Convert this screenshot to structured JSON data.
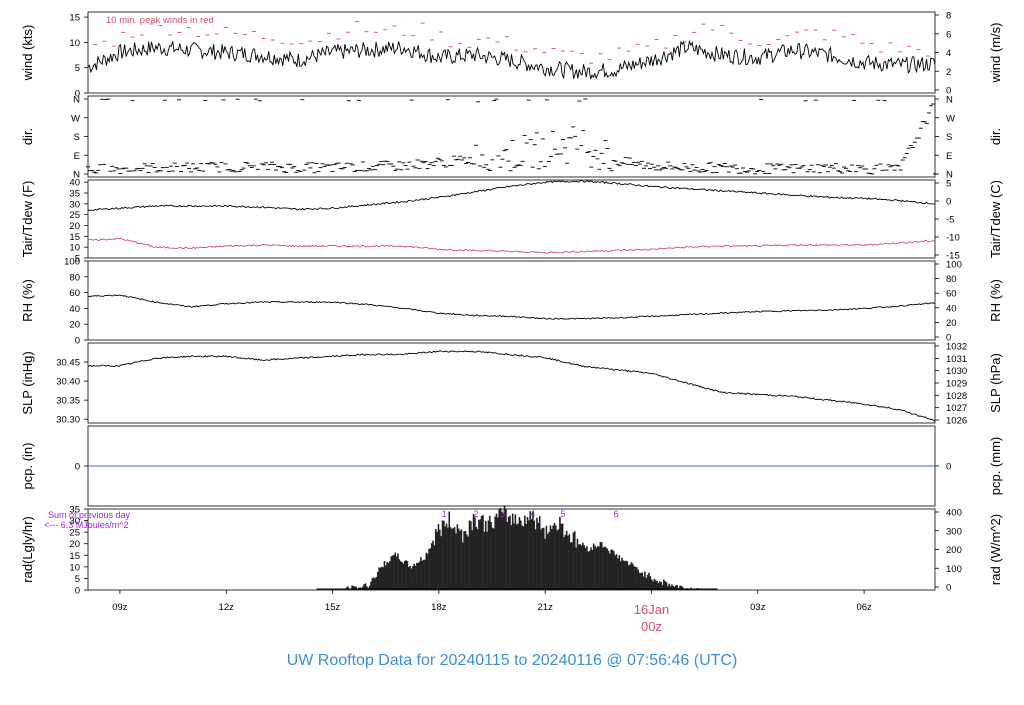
{
  "title": "UW Rooftop Data for 20240115  to  20240116 @ 07:56:46  (UTC)",
  "colors": {
    "title": "#3a8fd6",
    "accent": "#d0506a",
    "precip": "#3b6fd4",
    "annot": "#a020f0",
    "line": "#000000"
  },
  "chart_data": [
    {
      "type": "line",
      "id": "wind",
      "ylabel_left": "wind (kts)",
      "ylabel_right": "wind (m/s)",
      "ylim": [
        0,
        16
      ],
      "yticks_left": [
        "0",
        "5",
        "10",
        "15"
      ],
      "yticks_right": [
        "0",
        "2",
        "4",
        "6",
        "8"
      ],
      "annotation": "10 min. peak winds in red",
      "series": [
        {
          "color": "#000000",
          "x": [
            8,
            9,
            10,
            11,
            12,
            13,
            14,
            15,
            16,
            17,
            18,
            19,
            20,
            21,
            22,
            23,
            24,
            25,
            26,
            27,
            28,
            29,
            30,
            31,
            32
          ],
          "values": [
            4.8,
            8.0,
            9.0,
            8.5,
            8.0,
            7.5,
            6.5,
            8.0,
            8.5,
            9.0,
            7.0,
            7.5,
            6.5,
            5.0,
            4.2,
            4.6,
            6.5,
            9.0,
            7.5,
            7.0,
            8.5,
            7.5,
            6.0,
            5.5,
            5.8
          ]
        }
      ],
      "peaks": {
        "color": "#d0506a",
        "x": [
          8.5,
          9.5,
          10.5,
          11.5,
          12.5,
          13.5,
          14.5,
          15.5,
          16.5,
          17.5,
          18.5,
          19.5,
          20.5,
          21.5,
          22.5,
          23.5,
          24.5,
          25.5,
          26.5,
          27.5,
          28.5,
          29.5,
          30.5,
          31.5
        ],
        "values": [
          9.5,
          12.5,
          13.0,
          12.0,
          11.5,
          11.0,
          10.5,
          13.0,
          12.0,
          12.5,
          10.0,
          10.5,
          9.0,
          7.5,
          7.0,
          8.0,
          10.0,
          13.5,
          11.0,
          10.0,
          12.0,
          11.0,
          9.0,
          8.5
        ]
      }
    },
    {
      "type": "scatter",
      "id": "dir",
      "ylabel_left": "dir.",
      "ylabel_right": "dir.",
      "ylim": [
        0,
        360
      ],
      "yticks_left": [
        "N",
        "E",
        "S",
        "W",
        "N"
      ],
      "yticks_right": [
        "N",
        "E",
        "S",
        "W",
        "N"
      ],
      "series": [
        {
          "color": "#000000",
          "x": [
            8,
            9,
            10,
            11,
            12,
            13,
            14,
            15,
            16,
            17,
            18,
            19,
            20,
            21,
            22,
            23,
            24,
            25,
            26,
            27,
            28,
            29,
            30,
            31,
            32
          ],
          "values": [
            20,
            25,
            30,
            30,
            35,
            35,
            30,
            30,
            35,
            40,
            55,
            70,
            90,
            120,
            150,
            60,
            40,
            30,
            30,
            25,
            25,
            30,
            25,
            20,
            340
          ]
        }
      ]
    },
    {
      "type": "line",
      "id": "temp",
      "ylabel_left": "Tair/Tdew (F)",
      "ylabel_right": "Tair/Tdew (C)",
      "ylim": [
        5,
        41
      ],
      "yticks_left": [
        "5",
        "10",
        "15",
        "20",
        "25",
        "30",
        "35",
        "40"
      ],
      "yticks_right": [
        "-15",
        "-10",
        "-5",
        "0",
        "5"
      ],
      "series": [
        {
          "color": "#000000",
          "x": [
            8,
            9,
            10,
            11,
            12,
            13,
            14,
            15,
            16,
            17,
            18,
            19,
            20,
            21,
            22,
            23,
            24,
            25,
            26,
            27,
            28,
            29,
            30,
            31,
            32
          ],
          "values": [
            27,
            28,
            29,
            29,
            29,
            28.5,
            27.5,
            28,
            29.5,
            31,
            33,
            35.5,
            38,
            40,
            40.5,
            39.5,
            38,
            37,
            36,
            35,
            34,
            33,
            32.5,
            31.5,
            30
          ]
        },
        {
          "color": "#d0506a",
          "x": [
            8,
            9,
            10,
            11,
            12,
            13,
            14,
            15,
            16,
            17,
            18,
            19,
            20,
            21,
            22,
            23,
            24,
            25,
            26,
            27,
            28,
            29,
            30,
            31,
            32
          ],
          "values": [
            13,
            14,
            10,
            9.5,
            10.5,
            11,
            10.5,
            10.5,
            10.5,
            10.5,
            9,
            8.5,
            8,
            7.5,
            8,
            8.5,
            9,
            10,
            10.5,
            10.5,
            11,
            11,
            11,
            12,
            13
          ]
        }
      ]
    },
    {
      "type": "line",
      "id": "rh",
      "ylabel_left": "RH (%)",
      "ylabel_right": "RH (%)",
      "ylim": [
        0,
        100
      ],
      "yticks_left": [
        "0",
        "20",
        "40",
        "60",
        "80",
        "100"
      ],
      "yticks_right": [
        "0",
        "20",
        "40",
        "60",
        "80",
        "100"
      ],
      "series": [
        {
          "color": "#000000",
          "x": [
            8,
            9,
            10,
            11,
            12,
            13,
            14,
            15,
            16,
            17,
            18,
            19,
            20,
            21,
            22,
            23,
            24,
            25,
            26,
            27,
            28,
            29,
            30,
            31,
            32
          ],
          "values": [
            55,
            57,
            48,
            42,
            46,
            48,
            48,
            48,
            45,
            40,
            34,
            31,
            30,
            27,
            27,
            28,
            30,
            32,
            34,
            36,
            37,
            38,
            40,
            43,
            47
          ]
        }
      ]
    },
    {
      "type": "line",
      "id": "slp",
      "ylabel_left": "SLP (inHg)",
      "ylabel_right": "SLP (hPa)",
      "ylim": [
        30.29,
        30.5
      ],
      "yticks_left": [
        "30.30",
        "30.35",
        "30.40",
        "30.45"
      ],
      "yticks_right": [
        "1026",
        "1027",
        "1028",
        "1029",
        "1030",
        "1031",
        "1032"
      ],
      "series": [
        {
          "color": "#000000",
          "x": [
            8,
            9,
            10,
            11,
            12,
            13,
            14,
            15,
            16,
            17,
            18,
            19,
            20,
            21,
            22,
            23,
            24,
            25,
            26,
            27,
            28,
            29,
            30,
            31,
            32
          ],
          "values": [
            30.44,
            30.44,
            30.46,
            30.465,
            30.465,
            30.455,
            30.46,
            30.465,
            30.47,
            30.47,
            30.478,
            30.478,
            30.47,
            30.462,
            30.44,
            30.43,
            30.42,
            30.395,
            30.37,
            30.365,
            30.36,
            30.35,
            30.34,
            30.325,
            30.296
          ]
        }
      ]
    },
    {
      "type": "line",
      "id": "pcp",
      "ylabel_left": "pcp. (in)",
      "ylabel_right": "pcp. (mm)",
      "ylim": [
        -1,
        1
      ],
      "yticks_left": [
        "0"
      ],
      "yticks_right": [
        "0"
      ],
      "series": [
        {
          "color": "#3b6fd4",
          "x": [
            8,
            32
          ],
          "values": [
            0,
            0
          ]
        }
      ]
    },
    {
      "type": "area",
      "id": "rad",
      "ylabel_left": "rad(Lgly/hr)",
      "ylabel_right": "rad (W/m^2)",
      "ylim": [
        0,
        35
      ],
      "yticks_left": [
        "0",
        "5",
        "10",
        "15",
        "20",
        "25",
        "30",
        "35"
      ],
      "yticks_right": [
        "0",
        "100",
        "200",
        "300",
        "400"
      ],
      "annotation_lines": [
        "Sum of previous day",
        "<--- 6.3 MJoules/m^2"
      ],
      "hour_marks": [
        {
          "label": "1",
          "x": 18.15
        },
        {
          "label": "2",
          "x": 19.05
        },
        {
          "label": "3",
          "x": 19.8
        },
        {
          "label": "4",
          "x": 20.65
        },
        {
          "label": "5",
          "x": 21.5
        },
        {
          "label": "6",
          "x": 23.0
        }
      ],
      "series": [
        {
          "color": "#222222",
          "x": [
            15.4,
            16.0,
            16.5,
            16.8,
            17.2,
            17.6,
            18.0,
            18.3,
            18.7,
            19.0,
            19.4,
            19.8,
            20.2,
            20.6,
            21.0,
            21.4,
            21.8,
            22.2,
            22.6,
            23.0,
            23.4,
            23.8,
            24.2,
            24.6,
            25.0,
            25.3
          ],
          "values": [
            0,
            2,
            12,
            15,
            10,
            14,
            26,
            30,
            24,
            31,
            28,
            33,
            30,
            32,
            26,
            29,
            22,
            18,
            20,
            15,
            11,
            7,
            4,
            2,
            0.5,
            0
          ]
        }
      ]
    }
  ],
  "x_axis": {
    "ticks": [
      "09z",
      "12z",
      "15z",
      "18z",
      "21z",
      "16Jan",
      "03z",
      "06z"
    ],
    "tick_hours": [
      9,
      12,
      15,
      18,
      21,
      24,
      27,
      30
    ],
    "date_label": "16Jan",
    "date_sub": "00z",
    "xlim": [
      8.1,
      32.0
    ]
  }
}
